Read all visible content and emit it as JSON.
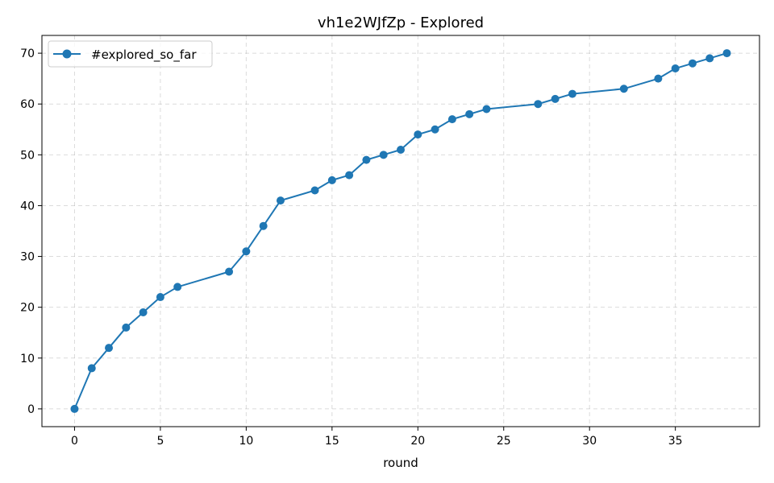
{
  "chart_data": {
    "type": "line",
    "title": "vh1e2WJfZp - Explored",
    "xlabel": "round",
    "ylabel": "",
    "xlim": [
      -1.9,
      39.9
    ],
    "ylim": [
      -3.5,
      73.5
    ],
    "xticks": [
      0,
      5,
      10,
      15,
      20,
      25,
      30,
      35
    ],
    "yticks": [
      0,
      10,
      20,
      30,
      40,
      50,
      60,
      70
    ],
    "grid": true,
    "legend_position": "top-left",
    "series": [
      {
        "name": "#explored_so_far",
        "color": "#1f77b4",
        "marker": "circle",
        "x": [
          0,
          1,
          2,
          3,
          4,
          5,
          6,
          9,
          10,
          11,
          12,
          14,
          15,
          16,
          17,
          18,
          19,
          20,
          21,
          22,
          23,
          24,
          27,
          28,
          29,
          32,
          34,
          35,
          36,
          37,
          38
        ],
        "y": [
          0,
          8,
          12,
          16,
          19,
          22,
          24,
          27,
          31,
          36,
          41,
          43,
          45,
          46,
          49,
          50,
          51,
          54,
          55,
          57,
          58,
          59,
          60,
          61,
          62,
          63,
          65,
          67,
          68,
          69,
          70
        ]
      }
    ]
  }
}
